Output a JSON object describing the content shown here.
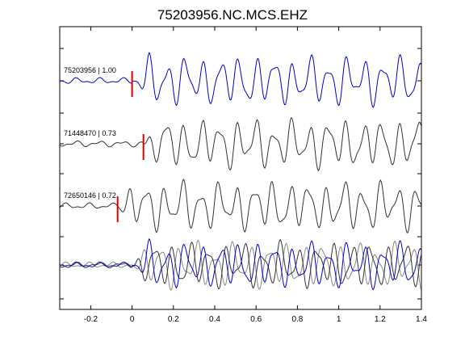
{
  "chart_data": {
    "type": "line",
    "title": "75203956.NC.MCS.EHZ",
    "xlabel": "",
    "ylabel": "",
    "xlim": [
      -0.35,
      1.4
    ],
    "x_ticks": [
      -0.2,
      0,
      0.2,
      0.4,
      0.6,
      0.8,
      1,
      1.2,
      1.4
    ],
    "x_tick_labels": [
      "-0.2",
      "0",
      "0.2",
      "0.4",
      "0.6",
      "0.8",
      "1",
      "1.2",
      "1.4"
    ],
    "grid": false,
    "legend": "none",
    "colors": {
      "primary": "#0000cc",
      "secondary": "#333333",
      "overlay_gray": "#888888",
      "pick": "#dd0000"
    },
    "traces": [
      {
        "label": "75203956 | 1.00",
        "baseline_offset": 3,
        "pick_time": 0.0,
        "color": "#0000cc"
      },
      {
        "label": "71448470 | 0.73",
        "baseline_offset": 2,
        "pick_time": 0.055,
        "color": "#333333"
      },
      {
        "label": "72650146 | 0.72",
        "baseline_offset": 1,
        "pick_time": -0.07,
        "color": "#333333"
      }
    ],
    "overlay": {
      "baseline_offset": 0,
      "note_series": "all traces superimposed"
    }
  }
}
